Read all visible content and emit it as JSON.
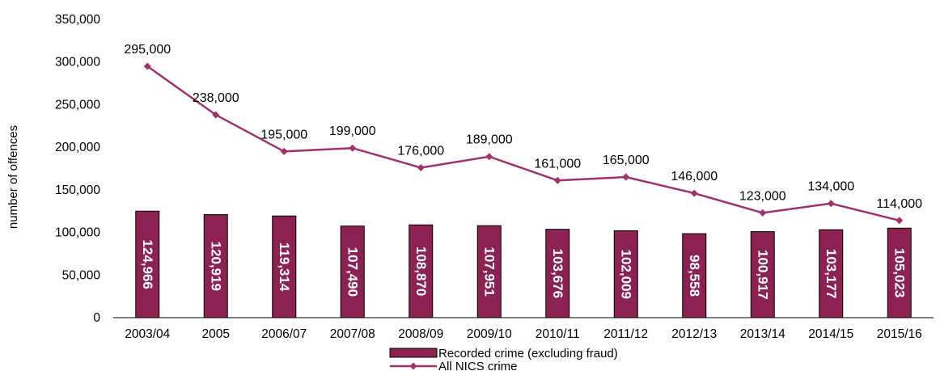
{
  "chart_data": {
    "type": "bar",
    "categories": [
      "2003/04",
      "2005",
      "2006/07",
      "2007/08",
      "2008/09",
      "2009/10",
      "2010/11",
      "2011/12",
      "2012/13",
      "2013/14",
      "2014/15",
      "2015/16"
    ],
    "ylabel": "number of offences",
    "ylim": [
      0,
      350000
    ],
    "yticks": [
      0,
      50000,
      100000,
      150000,
      200000,
      250000,
      300000,
      350000
    ],
    "ytick_labels": [
      "0",
      "50,000",
      "100,000",
      "150,000",
      "200,000",
      "250,000",
      "300,000",
      "350,000"
    ],
    "grid": false,
    "legend_position": "bottom",
    "series": [
      {
        "name": "Recorded crime (excluding fraud)",
        "type": "bar",
        "color": "#8B2252",
        "values": [
          124966,
          120919,
          119314,
          107490,
          108870,
          107951,
          103676,
          102009,
          98558,
          100917,
          103177,
          105023
        ],
        "labels": [
          "124,966",
          "120,919",
          "119,314",
          "107,490",
          "108,870",
          "107,951",
          "103,676",
          "102,009",
          "98,558",
          "100,917",
          "103,177",
          "105,023"
        ]
      },
      {
        "name": "All NICS crime",
        "type": "line",
        "color": "#A0306E",
        "values": [
          295000,
          238000,
          195000,
          199000,
          176000,
          189000,
          161000,
          165000,
          146000,
          123000,
          134000,
          114000
        ],
        "labels": [
          "295,000",
          "238,000",
          "195,000",
          "199,000",
          "176,000",
          "189,000",
          "161,000",
          "165,000",
          "146,000",
          "123,000",
          "134,000",
          "114,000"
        ]
      }
    ]
  }
}
